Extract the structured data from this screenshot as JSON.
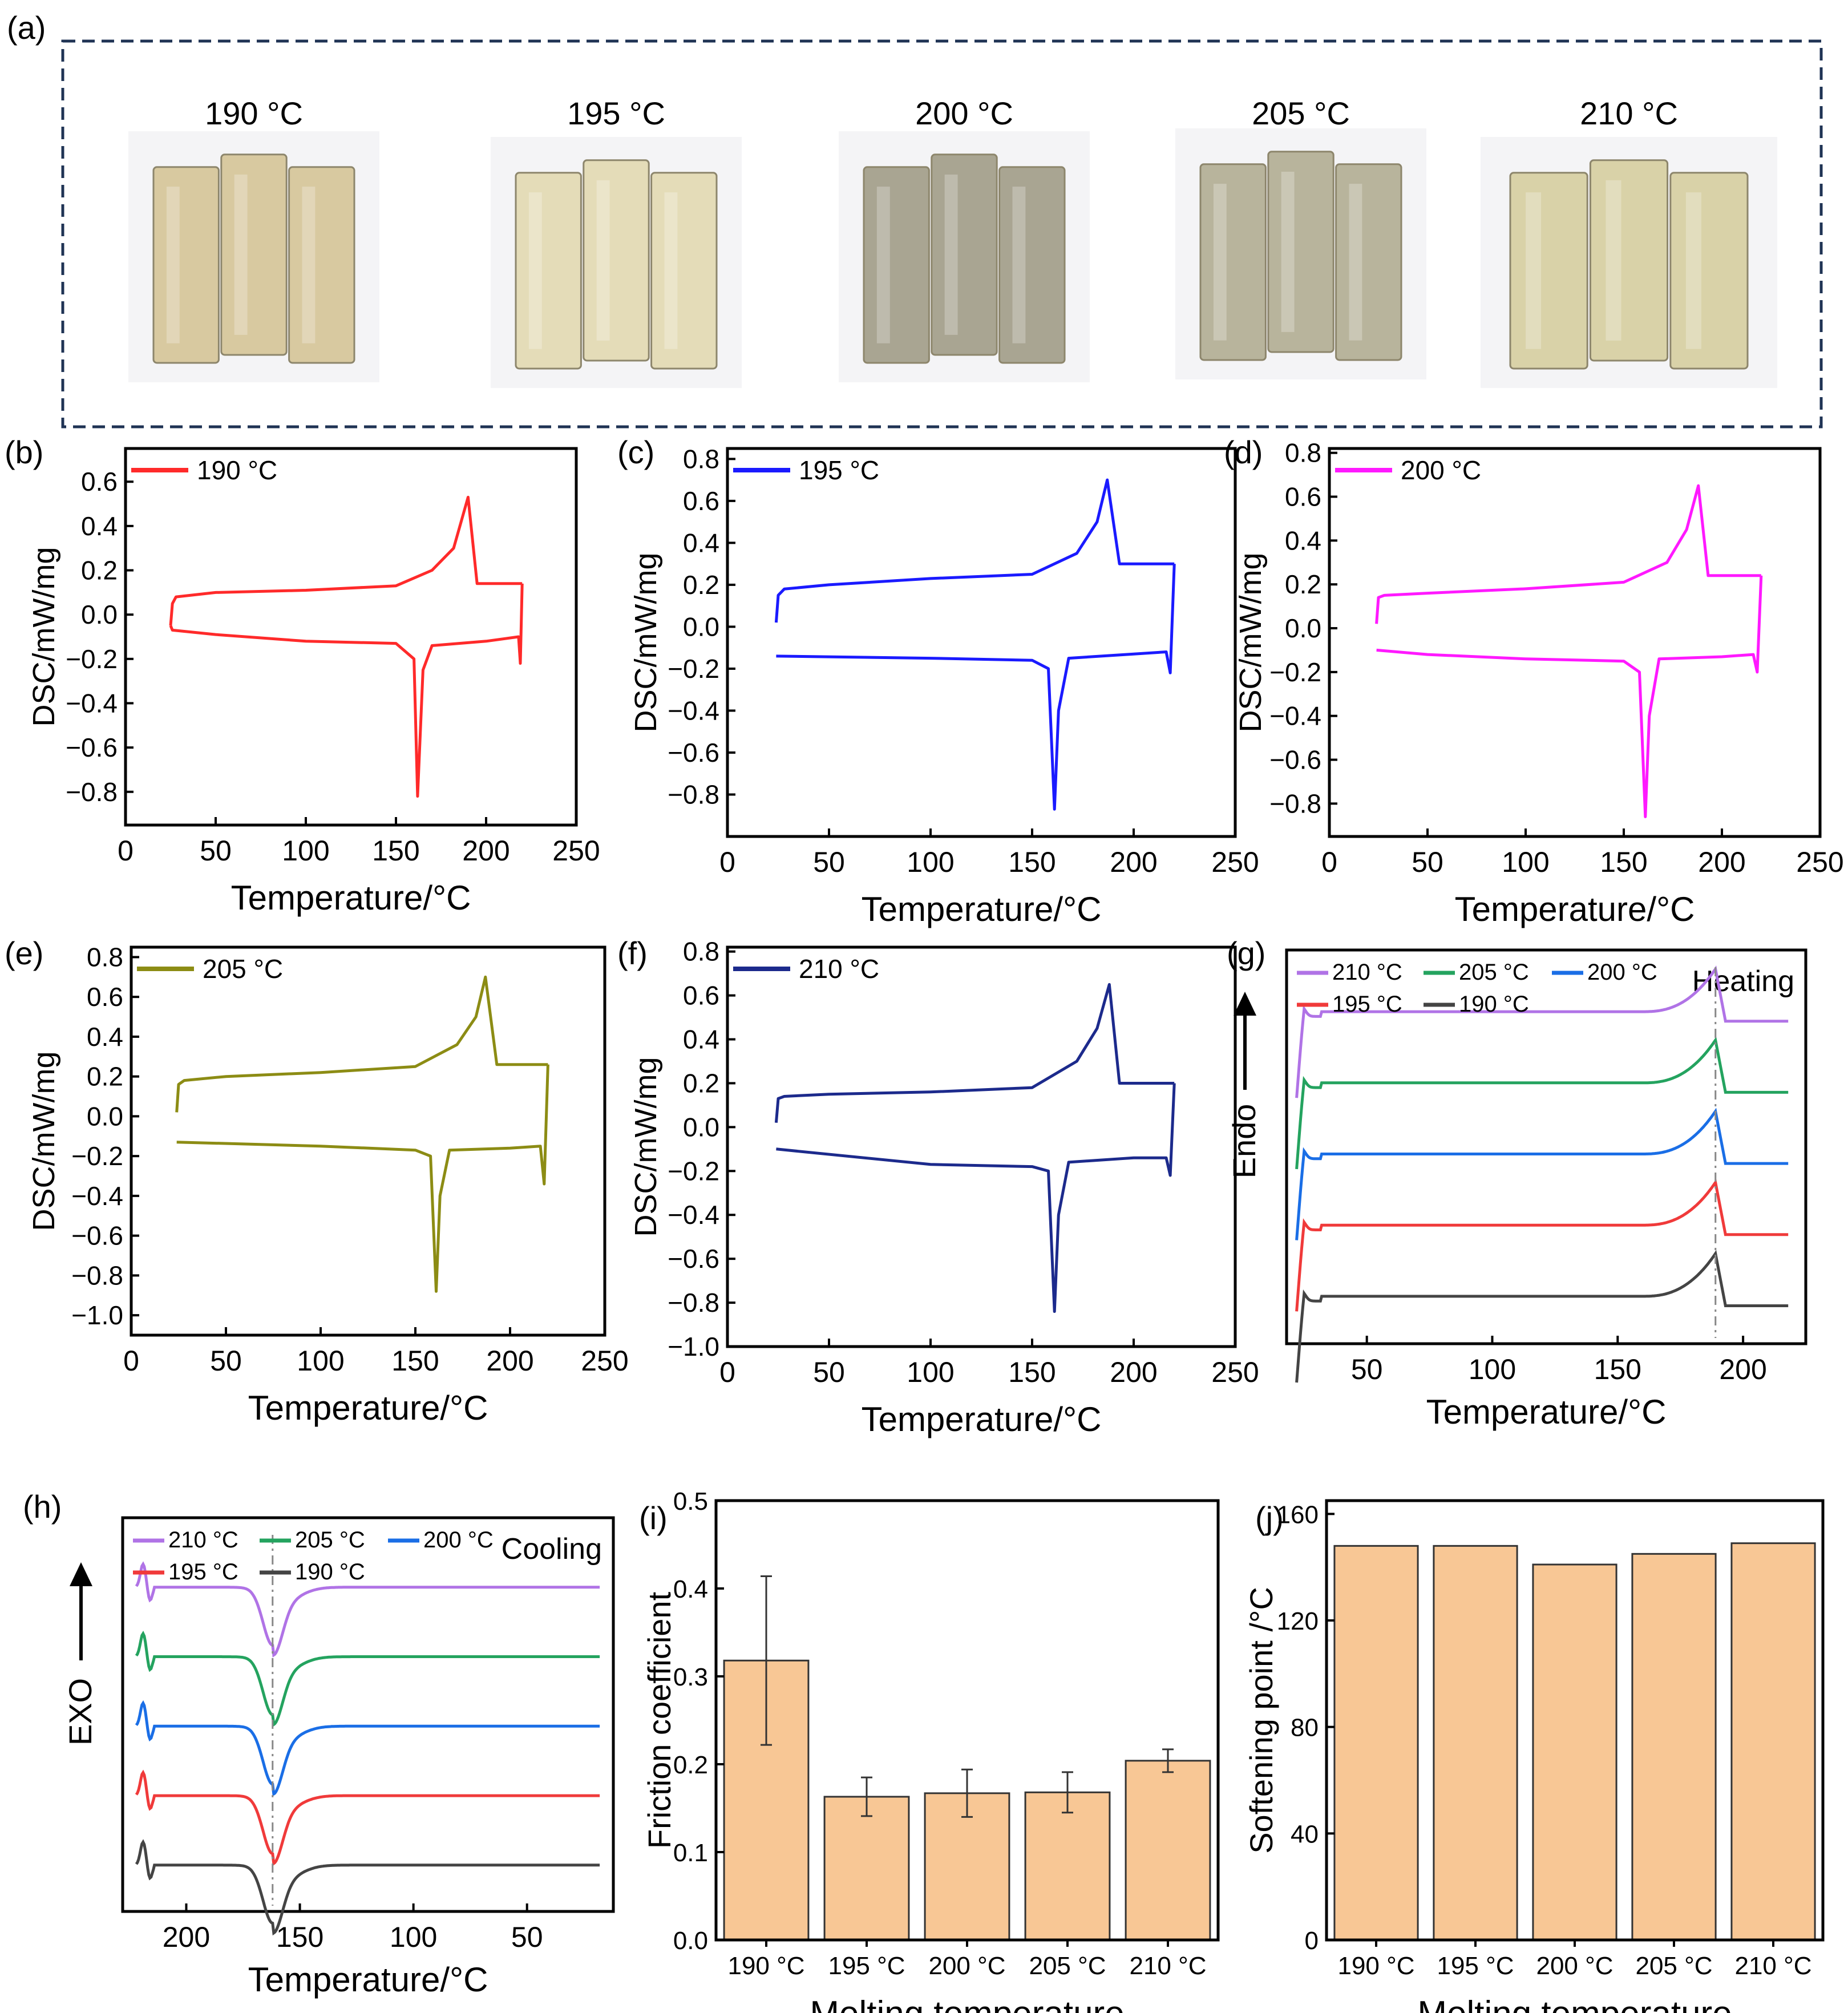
{
  "figure": {
    "panel_a": {
      "label": "(a)",
      "samples": [
        {
          "label": "190 °C",
          "color": "#d8c9a0"
        },
        {
          "label": "195 °C",
          "color": "#e4dcb8"
        },
        {
          "label": "200 °C",
          "color": "#a9a592"
        },
        {
          "label": "205 °C",
          "color": "#b8b49c"
        },
        {
          "label": "210 °C",
          "color": "#d9d2a8"
        }
      ]
    }
  },
  "chart_data": [
    {
      "id": "b",
      "label": "(b)",
      "type": "line",
      "legend": "190 °C",
      "color": "#ff2a2a",
      "xlabel": "Temperature/°C",
      "ylabel": "DSC/mW/mg",
      "xlim": [
        0,
        250
      ],
      "ylim": [
        -0.95,
        0.75
      ],
      "xticks": [
        "0",
        "50",
        "100",
        "150",
        "200",
        "250"
      ],
      "xtick_values": [
        0,
        50,
        100,
        150,
        200,
        250
      ],
      "yticks": [
        "−0.8",
        "−0.6",
        "−0.4",
        "−0.2",
        "0.0",
        "0.2",
        "0.4",
        "0.6"
      ],
      "ytick_values": [
        -0.8,
        -0.6,
        -0.4,
        -0.2,
        0,
        0.2,
        0.4,
        0.6
      ],
      "heating": [
        [
          25,
          -0.05
        ],
        [
          26,
          0.05
        ],
        [
          28,
          0.08
        ],
        [
          50,
          0.1
        ],
        [
          100,
          0.11
        ],
        [
          150,
          0.13
        ],
        [
          170,
          0.2
        ],
        [
          182,
          0.3
        ],
        [
          190,
          0.53
        ],
        [
          195,
          0.14
        ],
        [
          220,
          0.14
        ]
      ],
      "cooling": [
        [
          220,
          0.14
        ],
        [
          219,
          -0.22
        ],
        [
          218,
          -0.1
        ],
        [
          200,
          -0.12
        ],
        [
          170,
          -0.14
        ],
        [
          165,
          -0.25
        ],
        [
          162,
          -0.82
        ],
        [
          160,
          -0.2
        ],
        [
          150,
          -0.13
        ],
        [
          100,
          -0.12
        ],
        [
          50,
          -0.09
        ],
        [
          26,
          -0.07
        ],
        [
          25,
          -0.05
        ]
      ]
    },
    {
      "id": "c",
      "label": "(c)",
      "type": "line",
      "legend": "195 °C",
      "color": "#1a1aff",
      "xlabel": "Temperature/°C",
      "ylabel": "DSC/mW/mg",
      "xlim": [
        0,
        250
      ],
      "ylim": [
        -1.0,
        0.85
      ],
      "xticks": [
        "0",
        "50",
        "100",
        "150",
        "200",
        "250"
      ],
      "xtick_values": [
        0,
        50,
        100,
        150,
        200,
        250
      ],
      "yticks": [
        "−0.8",
        "−0.6",
        "−0.4",
        "−0.2",
        "0.0",
        "0.2",
        "0.4",
        "0.6",
        "0.8"
      ],
      "ytick_values": [
        -0.8,
        -0.6,
        -0.4,
        -0.2,
        0,
        0.2,
        0.4,
        0.6,
        0.8
      ],
      "heating": [
        [
          24,
          0.02
        ],
        [
          25,
          0.15
        ],
        [
          28,
          0.18
        ],
        [
          50,
          0.2
        ],
        [
          100,
          0.23
        ],
        [
          150,
          0.25
        ],
        [
          172,
          0.35
        ],
        [
          182,
          0.5
        ],
        [
          187,
          0.7
        ],
        [
          193,
          0.3
        ],
        [
          220,
          0.3
        ]
      ],
      "cooling": [
        [
          220,
          0.3
        ],
        [
          218,
          -0.22
        ],
        [
          216,
          -0.12
        ],
        [
          200,
          -0.13
        ],
        [
          168,
          -0.15
        ],
        [
          163,
          -0.4
        ],
        [
          161,
          -0.87
        ],
        [
          158,
          -0.2
        ],
        [
          150,
          -0.16
        ],
        [
          100,
          -0.15
        ],
        [
          24,
          -0.14
        ]
      ]
    },
    {
      "id": "d",
      "label": "(d)",
      "type": "line",
      "legend": "200 °C",
      "color": "#ff19ff",
      "xlabel": "Temperature/°C",
      "ylabel": "DSC/mW/mg",
      "xlim": [
        0,
        250
      ],
      "ylim": [
        -0.95,
        0.82
      ],
      "xticks": [
        "0",
        "50",
        "100",
        "150",
        "200",
        "250"
      ],
      "xtick_values": [
        0,
        50,
        100,
        150,
        200,
        250
      ],
      "yticks": [
        "−0.8",
        "−0.6",
        "−0.4",
        "−0.2",
        "0.0",
        "0.2",
        "0.4",
        "0.6",
        "0.8"
      ],
      "ytick_values": [
        -0.8,
        -0.6,
        -0.4,
        -0.2,
        0,
        0.2,
        0.4,
        0.6,
        0.8
      ],
      "heating": [
        [
          24,
          0.02
        ],
        [
          25,
          0.14
        ],
        [
          28,
          0.15
        ],
        [
          50,
          0.16
        ],
        [
          100,
          0.18
        ],
        [
          150,
          0.21
        ],
        [
          172,
          0.3
        ],
        [
          182,
          0.45
        ],
        [
          188,
          0.65
        ],
        [
          193,
          0.24
        ],
        [
          220,
          0.24
        ]
      ],
      "cooling": [
        [
          220,
          0.24
        ],
        [
          218,
          -0.2
        ],
        [
          216,
          -0.12
        ],
        [
          200,
          -0.13
        ],
        [
          168,
          -0.14
        ],
        [
          163,
          -0.4
        ],
        [
          161,
          -0.86
        ],
        [
          158,
          -0.2
        ],
        [
          150,
          -0.15
        ],
        [
          100,
          -0.14
        ],
        [
          50,
          -0.12
        ],
        [
          24,
          -0.1
        ]
      ]
    },
    {
      "id": "e",
      "label": "(e)",
      "type": "line",
      "legend": "205 °C",
      "color": "#8c8c14",
      "xlabel": "Temperature/°C",
      "ylabel": "DSC/mW/mg",
      "xlim": [
        0,
        250
      ],
      "ylim": [
        -1.1,
        0.85
      ],
      "xticks": [
        "0",
        "50",
        "100",
        "150",
        "200",
        "250"
      ],
      "xtick_values": [
        0,
        50,
        100,
        150,
        200,
        250
      ],
      "yticks": [
        "−1.0",
        "−0.8",
        "−0.6",
        "−0.4",
        "−0.2",
        "0.0",
        "0.2",
        "0.4",
        "0.6",
        "0.8"
      ],
      "ytick_values": [
        -1.0,
        -0.8,
        -0.6,
        -0.4,
        -0.2,
        0,
        0.2,
        0.4,
        0.6,
        0.8
      ],
      "heating": [
        [
          24,
          0.02
        ],
        [
          25,
          0.16
        ],
        [
          28,
          0.18
        ],
        [
          50,
          0.2
        ],
        [
          100,
          0.22
        ],
        [
          150,
          0.25
        ],
        [
          172,
          0.36
        ],
        [
          182,
          0.5
        ],
        [
          187,
          0.7
        ],
        [
          193,
          0.26
        ],
        [
          220,
          0.26
        ]
      ],
      "cooling": [
        [
          220,
          0.26
        ],
        [
          218,
          -0.34
        ],
        [
          216,
          -0.15
        ],
        [
          200,
          -0.16
        ],
        [
          168,
          -0.17
        ],
        [
          163,
          -0.4
        ],
        [
          161,
          -0.88
        ],
        [
          158,
          -0.2
        ],
        [
          150,
          -0.17
        ],
        [
          100,
          -0.15
        ],
        [
          24,
          -0.13
        ]
      ]
    },
    {
      "id": "f",
      "label": "(f)",
      "type": "line",
      "legend": "210 °C",
      "color": "#1c2a8c",
      "xlabel": "Temperature/°C",
      "ylabel": "DSC/mW/mg",
      "xlim": [
        0,
        250
      ],
      "ylim": [
        -1.0,
        0.82
      ],
      "xticks": [
        "0",
        "50",
        "100",
        "150",
        "200",
        "250"
      ],
      "xtick_values": [
        0,
        50,
        100,
        150,
        200,
        250
      ],
      "yticks": [
        "−1.0",
        "−0.8",
        "−0.6",
        "−0.4",
        "−0.2",
        "0.0",
        "0.2",
        "0.4",
        "0.6",
        "0.8"
      ],
      "ytick_values": [
        -1.0,
        -0.8,
        -0.6,
        -0.4,
        -0.2,
        0,
        0.2,
        0.4,
        0.6,
        0.8
      ],
      "heating": [
        [
          24,
          0.02
        ],
        [
          25,
          0.13
        ],
        [
          28,
          0.14
        ],
        [
          50,
          0.15
        ],
        [
          100,
          0.16
        ],
        [
          150,
          0.18
        ],
        [
          172,
          0.3
        ],
        [
          182,
          0.45
        ],
        [
          188,
          0.65
        ],
        [
          193,
          0.2
        ],
        [
          220,
          0.2
        ]
      ],
      "cooling": [
        [
          220,
          0.2
        ],
        [
          218,
          -0.22
        ],
        [
          216,
          -0.14
        ],
        [
          200,
          -0.14
        ],
        [
          168,
          -0.16
        ],
        [
          163,
          -0.4
        ],
        [
          161,
          -0.84
        ],
        [
          158,
          -0.2
        ],
        [
          150,
          -0.18
        ],
        [
          100,
          -0.17
        ],
        [
          24,
          -0.1
        ]
      ]
    },
    {
      "id": "g",
      "label": "(g)",
      "type": "line",
      "annotation": "Heating",
      "xlabel": "Temperature/°C",
      "ylabel": "Endo",
      "xlim": [
        18,
        225
      ],
      "xticks": [
        "50",
        "100",
        "150",
        "200"
      ],
      "xtick_values": [
        50,
        100,
        150,
        200
      ],
      "dash_x": 189,
      "offsets": [
        0.35,
        0.2,
        0.05,
        -0.1,
        -0.25
      ],
      "series": [
        {
          "name": "210 °C",
          "color": "#b073e6"
        },
        {
          "name": "205 °C",
          "color": "#24a35f"
        },
        {
          "name": "200 °C",
          "color": "#1a6ee6"
        },
        {
          "name": "195 °C",
          "color": "#f03a3a"
        },
        {
          "name": "190 °C",
          "color": "#444444"
        }
      ]
    },
    {
      "id": "h",
      "label": "(h)",
      "type": "line",
      "annotation": "Cooling",
      "xlabel": "Temperature/°C",
      "ylabel": "EXO",
      "xlim": [
        228,
        12
      ],
      "xticks": [
        "200",
        "150",
        "100",
        "50"
      ],
      "xtick_values": [
        200,
        150,
        100,
        50
      ],
      "dash_x": 162,
      "offsets": [
        0.35,
        0.2,
        0.05,
        -0.1,
        -0.25
      ],
      "series": [
        {
          "name": "210 °C",
          "color": "#b073e6"
        },
        {
          "name": "205 °C",
          "color": "#24a35f"
        },
        {
          "name": "200 °C",
          "color": "#1a6ee6"
        },
        {
          "name": "195 °C",
          "color": "#f03a3a"
        },
        {
          "name": "190 °C",
          "color": "#444444"
        }
      ]
    },
    {
      "id": "i",
      "label": "(i)",
      "type": "bar",
      "categories": [
        "190 °C",
        "195 °C",
        "200 °C",
        "205 °C",
        "210 °C"
      ],
      "values": [
        0.318,
        0.163,
        0.167,
        0.168,
        0.204
      ],
      "errors": [
        0.096,
        0.022,
        0.027,
        0.023,
        0.013
      ],
      "xlabel": "Melting temperature",
      "ylabel": "Friction coefficient",
      "ylim": [
        0,
        0.5
      ],
      "yticks": [
        "0.0",
        "0.1",
        "0.2",
        "0.3",
        "0.4",
        "0.5"
      ],
      "ytick_values": [
        0,
        0.1,
        0.2,
        0.3,
        0.4,
        0.5
      ],
      "bar_color": "#f8c795"
    },
    {
      "id": "j",
      "label": "(j)",
      "type": "bar",
      "categories": [
        "190 °C",
        "195 °C",
        "200 °C",
        "205 °C",
        "210 °C"
      ],
      "values": [
        148,
        148,
        141,
        145,
        149
      ],
      "xlabel": "Melting temperature",
      "ylabel": "Softening point /°C",
      "ylim": [
        0,
        165
      ],
      "yticks": [
        "0",
        "40",
        "80",
        "120",
        "160"
      ],
      "ytick_values": [
        0,
        40,
        80,
        120,
        160
      ],
      "bar_color": "#f8c795"
    }
  ]
}
